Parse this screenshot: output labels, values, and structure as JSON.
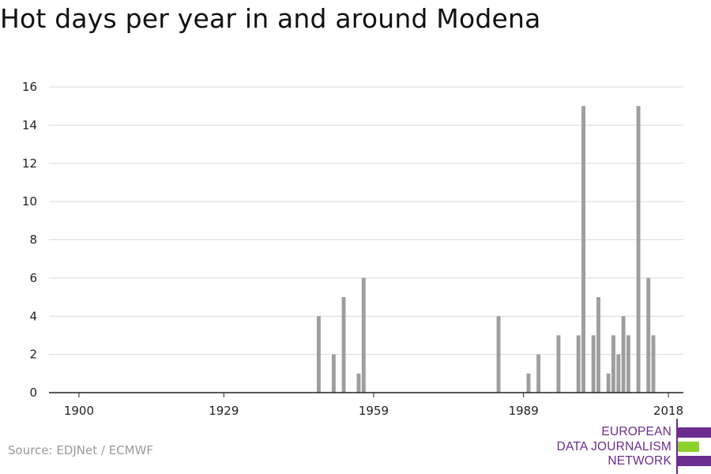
{
  "title": "Hot days per year in and around Modena",
  "source": "Source: EDJNet / ECMWF",
  "logo": {
    "lines": [
      "EUROPEAN",
      "DATA JOURNALISM",
      "NETWORK"
    ],
    "colors": {
      "purple": "#6b2d8e",
      "green": "#8cd22a"
    }
  },
  "chart_data": {
    "type": "bar",
    "title": "Hot days per year in and around Modena",
    "xlabel": "",
    "ylabel": "",
    "xlim": [
      1894,
      2021
    ],
    "ylim": [
      0,
      16
    ],
    "x_ticks": [
      1900,
      1929,
      1959,
      1989,
      2018
    ],
    "y_ticks": [
      0,
      2,
      4,
      6,
      8,
      10,
      12,
      14,
      16
    ],
    "grid": "horizontal",
    "bar_color": "#9e9e9e",
    "x": [
      1948,
      1951,
      1953,
      1956,
      1957,
      1984,
      1990,
      1992,
      1996,
      2000,
      2001,
      2003,
      2004,
      2006,
      2007,
      2008,
      2009,
      2010,
      2012,
      2014,
      2015
    ],
    "values": [
      4,
      2,
      5,
      1,
      6,
      4,
      1,
      2,
      3,
      3,
      15,
      3,
      5,
      1,
      3,
      2,
      4,
      3,
      15,
      6,
      3
    ]
  }
}
